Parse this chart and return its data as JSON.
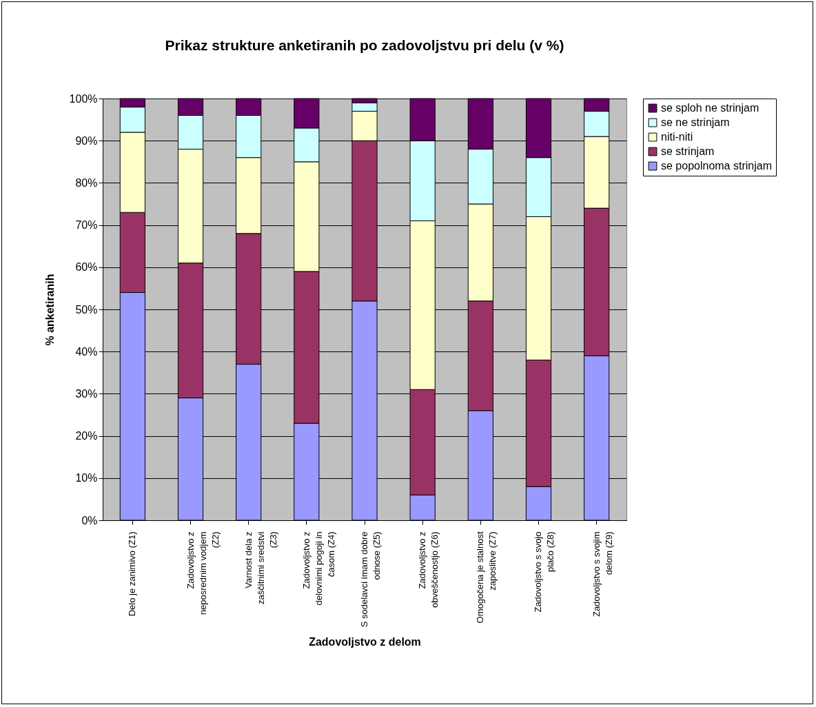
{
  "chart_data": {
    "type": "bar",
    "title": "Prikaz strukture anketiranih po zadovoljstvu pri delu (v %)",
    "xlabel": "Zadovoljstvo z delom",
    "ylabel": "% anketiranih",
    "categories": [
      "Delo je zanimivo (Z1)",
      "Zadovoljstvo z neposrednim vodjem (Z2)",
      "Varnost dela z zaščitnimi sredstvi (Z3)",
      "Zadovoljstvo z delovnimi pogoji in časom (Z4)",
      "S sodelavci imam dobre odnose (Z5)",
      "Zadovoljstvo z obveščenostjo (Z6)",
      "Omogočena je stalnost zaposlitve (Z7)",
      "Zadovoljstvo s svojo plačo (Z8)",
      "Zadovoljstvo s svojim delom (Z9)"
    ],
    "stacked": true,
    "series": [
      {
        "name": "se popolnoma strinjam",
        "color": "#9999ff",
        "values": [
          54,
          29,
          37,
          23,
          52,
          6,
          26,
          8,
          39
        ]
      },
      {
        "name": "se strinjam",
        "color": "#993366",
        "values": [
          19,
          32,
          31,
          36,
          38,
          25,
          26,
          30,
          35
        ]
      },
      {
        "name": "niti-niti",
        "color": "#ffffcc",
        "values": [
          19,
          27,
          18,
          26,
          7,
          40,
          23,
          34,
          17
        ]
      },
      {
        "name": "se ne strinjam",
        "color": "#ccffff",
        "values": [
          6,
          8,
          10,
          8,
          2,
          19,
          13,
          14,
          6
        ]
      },
      {
        "name": "se sploh ne strinjam",
        "color": "#660066",
        "values": [
          2,
          4,
          4,
          7,
          1,
          10,
          12,
          14,
          3
        ]
      }
    ],
    "ylim": [
      0,
      100
    ],
    "yticks": [
      {
        "value": 0,
        "label": "0%"
      },
      {
        "value": 10,
        "label": "10%"
      },
      {
        "value": 20,
        "label": "20%"
      },
      {
        "value": 30,
        "label": "30%"
      },
      {
        "value": 40,
        "label": "40%"
      },
      {
        "value": 50,
        "label": "50%"
      },
      {
        "value": 60,
        "label": "60%"
      },
      {
        "value": 70,
        "label": "70%"
      },
      {
        "value": 80,
        "label": "80%"
      },
      {
        "value": 90,
        "label": "90%"
      },
      {
        "value": 100,
        "label": "100%"
      }
    ],
    "grid": "y",
    "legend": "right"
  }
}
